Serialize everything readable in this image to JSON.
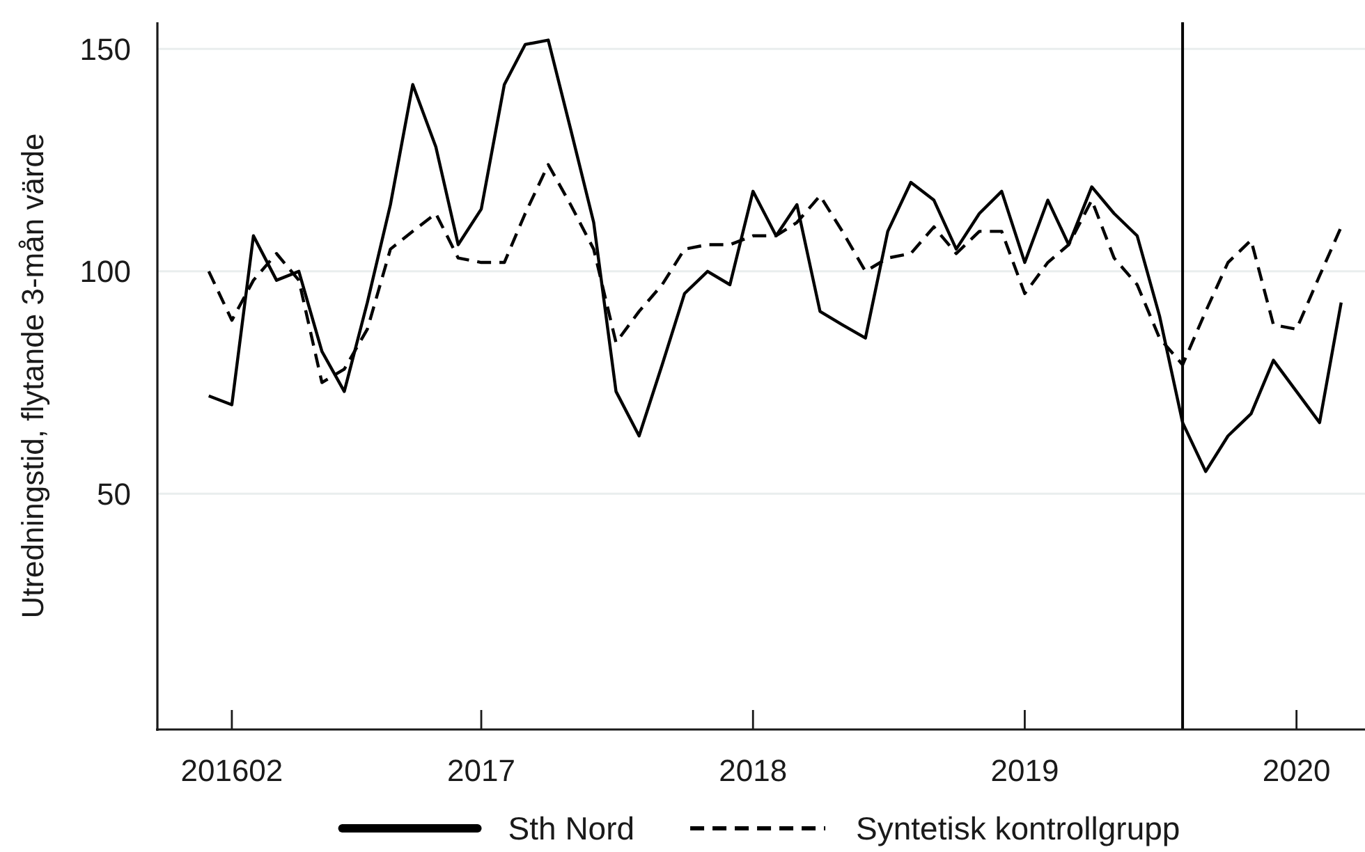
{
  "chart_data": {
    "type": "line",
    "ylabel": "Utredningstid, flytande 3-mån värde",
    "x": [
      "2016-01",
      "2016-02",
      "2016-03",
      "2016-04",
      "2016-05",
      "2016-06",
      "2016-07",
      "2016-08",
      "2016-09",
      "2016-10",
      "2016-11",
      "2016-12",
      "2017-01",
      "2017-02",
      "2017-03",
      "2017-04",
      "2017-05",
      "2017-06",
      "2017-07",
      "2017-08",
      "2017-09",
      "2017-10",
      "2017-11",
      "2017-12",
      "2018-01",
      "2018-02",
      "2018-03",
      "2018-04",
      "2018-05",
      "2018-06",
      "2018-07",
      "2018-08",
      "2018-09",
      "2018-10",
      "2018-11",
      "2018-12",
      "2019-01",
      "2019-02",
      "2019-03",
      "2019-04",
      "2019-05",
      "2019-06",
      "2019-07",
      "2019-08",
      "2019-09",
      "2019-10",
      "2019-11",
      "2019-12",
      "2020-01",
      "2020-02",
      "2020-03"
    ],
    "series": [
      {
        "name": "Sth Nord",
        "color": "#000000",
        "line_style": "solid",
        "values": [
          72,
          70,
          108,
          98,
          100,
          82,
          73,
          93,
          115,
          142,
          128,
          106,
          114,
          142,
          151,
          152,
          132,
          111,
          73,
          63,
          79,
          95,
          100,
          97,
          118,
          108,
          115,
          91,
          88,
          85,
          109,
          120,
          116,
          105,
          113,
          118,
          102,
          116,
          106,
          119,
          113,
          108,
          90,
          66,
          55,
          63,
          68,
          80,
          73,
          66,
          93
        ]
      },
      {
        "name": "Syntetisk kontrollgrupp",
        "color": "#000000",
        "line_style": "dashed",
        "values": [
          100,
          89,
          98,
          104,
          98,
          75,
          78,
          87,
          105,
          109,
          113,
          103,
          102,
          102,
          113,
          124,
          115,
          105,
          84,
          91,
          97,
          105,
          106,
          106,
          108,
          108,
          111,
          117,
          109,
          100,
          103,
          104,
          110,
          104,
          109,
          109,
          95,
          102,
          106,
          116,
          103,
          97,
          85,
          79,
          91,
          102,
          107,
          88,
          87,
          99,
          110
        ]
      }
    ],
    "xlim": [
      "2015-10-24",
      "2020-04-02"
    ],
    "xticks": [
      {
        "value": "2016-02",
        "label": "201602"
      },
      "2017",
      "2018",
      "2019",
      "2020"
    ],
    "ylim": [
      -3,
      156
    ],
    "yticks": [
      50,
      100,
      150
    ],
    "grid": "y",
    "legend": "bottom",
    "ref_lines": [
      {
        "axis": "x",
        "value": "2019-08",
        "color": "#000000"
      }
    ]
  }
}
